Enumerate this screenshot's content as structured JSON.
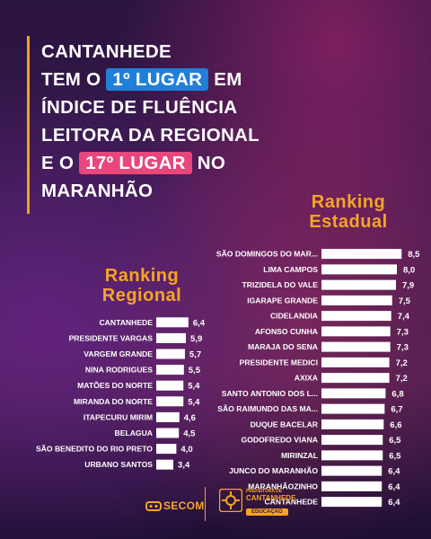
{
  "headline": {
    "line1": "Cantanhede",
    "line2_pre": "tem o",
    "line2_pill": "1º lugar",
    "line2_post": "em",
    "line3": "índice de fluência",
    "line4": "leitora da regional",
    "line5_pre": "e o",
    "line5_pill": "17º lugar",
    "line5_post": "no",
    "line6": "Maranhão"
  },
  "colors": {
    "accent": "#f5a524",
    "pill_blue": "#1f7fd9",
    "pill_pink": "#e8467d",
    "bar": "#ffffff"
  },
  "chart_data": [
    {
      "type": "bar",
      "orientation": "horizontal",
      "title_line1": "Ranking",
      "title_line2": "Estadual",
      "categories": [
        "SÃO DOMINGOS DO MAR...",
        "LIMA CAMPOS",
        "TRIZIDELA DO VALE",
        "IGARAPE GRANDE",
        "CIDELANDIA",
        "AFONSO CUNHA",
        "MARAJA DO SENA",
        "PRESIDENTE MEDICI",
        "AXIXA",
        "SANTO ANTONIO DOS L...",
        "SÃO RAIMUNDO DAS MA...",
        "DUQUE BACELAR",
        "GODOFREDO VIANA",
        "MIRINZAL",
        "JUNCO DO MARANHÃO",
        "MARANHÃOZINHO",
        "CANTANHEDE"
      ],
      "values": [
        "8,5",
        "8,0",
        "7,9",
        "7,5",
        "7,4",
        "7,3",
        "7,3",
        "7,2",
        "7,2",
        "6,8",
        "6,7",
        "6,6",
        "6,5",
        "6,5",
        "6,4",
        "6,4",
        "6,4"
      ],
      "numeric": [
        8.5,
        8.0,
        7.9,
        7.5,
        7.4,
        7.3,
        7.3,
        7.2,
        7.2,
        6.8,
        6.7,
        6.6,
        6.5,
        6.5,
        6.4,
        6.4,
        6.4
      ]
    },
    {
      "type": "bar",
      "orientation": "horizontal",
      "title_line1": "Ranking",
      "title_line2": "Regional",
      "categories": [
        "CANTANHEDE",
        "PRESIDENTE VARGAS",
        "VARGEM GRANDE",
        "NINA RODRIGUES",
        "MATÕES DO NORTE",
        "MIRANDA DO NORTE",
        "ITAPECURU MIRIM",
        "BELAGUA",
        "SÃO BENEDITO DO RIO PRETO",
        "URBANO SANTOS"
      ],
      "values": [
        "6,4",
        "5,9",
        "5,7",
        "5,5",
        "5,4",
        "5,4",
        "4,6",
        "4,5",
        "4,0",
        "3,4"
      ],
      "numeric": [
        6.4,
        5.9,
        5.7,
        5.5,
        5.4,
        5.4,
        4.6,
        4.5,
        4.0,
        3.4
      ]
    }
  ],
  "footer": {
    "secom": "SECOM",
    "pref_line1": "PREFEITURA DE",
    "pref_line2": "CANTANHEDE",
    "pref_badge": "EDUCAÇÃO"
  }
}
